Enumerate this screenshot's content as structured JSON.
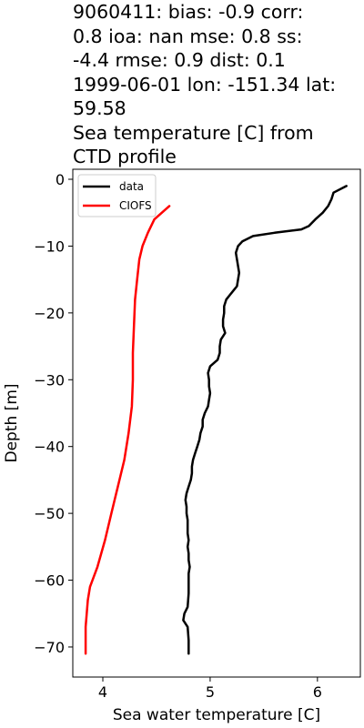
{
  "chart_data": {
    "type": "line",
    "title_lines": [
      "9060411: bias: -0.9  corr:",
      "0.8  ioa: nan  mse: 0.8  ss:",
      "-4.4  rmse: 0.9  dist: 0.1",
      "1999-06-01 lon: -151.34 lat:",
      "59.58",
      "Sea temperature [C] from",
      "CTD profile"
    ],
    "xlabel": "Sea water temperature [C]",
    "ylabel": "Depth [m]",
    "xlim": [
      3.72,
      6.4
    ],
    "ylim": [
      -74.5,
      1.5
    ],
    "xticks": [
      4,
      5,
      6
    ],
    "yticks": [
      0,
      -10,
      -20,
      -30,
      -40,
      -50,
      -60,
      -70
    ],
    "legend_position": "upper-left",
    "grid": false,
    "series": [
      {
        "name": "data",
        "color": "#000000",
        "x": [
          6.27,
          6.15,
          6.13,
          6.1,
          6.05,
          5.98,
          5.92,
          5.85,
          5.6,
          5.4,
          5.3,
          5.26,
          5.24,
          5.25,
          5.27,
          5.26,
          5.25,
          5.2,
          5.15,
          5.13,
          5.13,
          5.12,
          5.12,
          5.14,
          5.1,
          5.09,
          5.09,
          5.07,
          5.0,
          4.98,
          4.99,
          4.99,
          5.0,
          4.99,
          4.98,
          4.95,
          4.93,
          4.93,
          4.91,
          4.9,
          4.88,
          4.86,
          4.84,
          4.83,
          4.83,
          4.82,
          4.8,
          4.78,
          4.77,
          4.78,
          4.78,
          4.79,
          4.79,
          4.79,
          4.8,
          4.79,
          4.8,
          4.8,
          4.81,
          4.8,
          4.8,
          4.8,
          4.79,
          4.76,
          4.75,
          4.79,
          4.8,
          4.8
        ],
        "y": [
          -1,
          -2,
          -3,
          -4,
          -5,
          -6,
          -7,
          -7.5,
          -8,
          -8.5,
          -9.3,
          -10,
          -11,
          -12,
          -14,
          -15,
          -16,
          -17,
          -18,
          -19,
          -20,
          -21,
          -22,
          -23,
          -24,
          -25,
          -26,
          -27,
          -28,
          -29,
          -30,
          -31,
          -32,
          -33,
          -34,
          -35,
          -36,
          -37,
          -38,
          -39,
          -40,
          -41,
          -42,
          -43,
          -44,
          -45,
          -46,
          -47,
          -48,
          -49,
          -50,
          -51,
          -52,
          -53,
          -54,
          -55,
          -56,
          -57,
          -58,
          -59,
          -60,
          -62,
          -64,
          -65,
          -66,
          -67,
          -69,
          -71
        ]
      },
      {
        "name": "CIOFS",
        "color": "#ff0000",
        "x": [
          4.62,
          4.55,
          4.48,
          4.42,
          4.37,
          4.34,
          4.32,
          4.3,
          4.29,
          4.28,
          4.28,
          4.27,
          4.24,
          4.2,
          4.14,
          4.08,
          4.02,
          3.95,
          3.88,
          3.86,
          3.85,
          3.84,
          3.84,
          3.84
        ],
        "y": [
          -4,
          -5,
          -6,
          -8,
          -10,
          -12,
          -15,
          -18,
          -22,
          -26,
          -30,
          -34,
          -38,
          -42,
          -46,
          -50,
          -54,
          -58,
          -61,
          -63,
          -65,
          -67,
          -69,
          -71
        ]
      }
    ]
  }
}
